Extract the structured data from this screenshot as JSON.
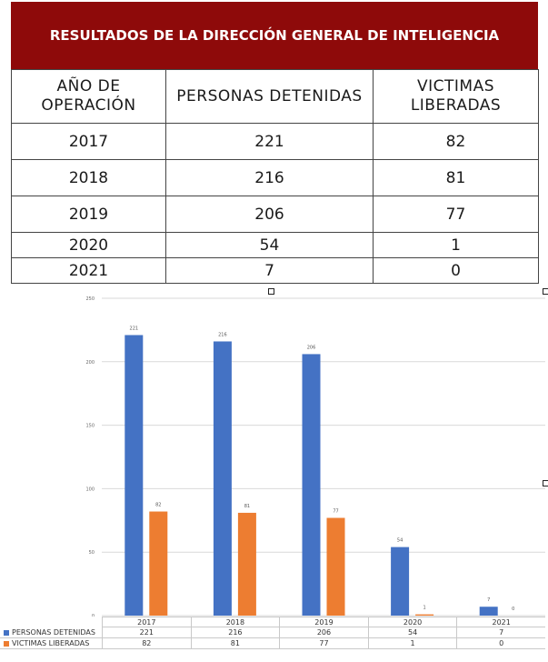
{
  "table": {
    "title": "RESULTADOS DE LA DIRECCIÓN GENERAL DE INTELIGENCIA",
    "headers": [
      "AÑO DE OPERACIÓN",
      "PERSONAS DETENIDAS",
      "VICTIMAS LIBERADAS"
    ],
    "rows": [
      [
        "2017",
        "221",
        "82"
      ],
      [
        "2018",
        "216",
        "81"
      ],
      [
        "2019",
        "206",
        "77"
      ],
      [
        "2020",
        "54",
        "1"
      ],
      [
        "2021",
        "7",
        "0"
      ]
    ]
  },
  "chart_data": {
    "type": "bar",
    "categories": [
      "2017",
      "2018",
      "2019",
      "2020",
      "2021"
    ],
    "series": [
      {
        "name": "PERSONAS DETENIDAS",
        "values": [
          221,
          216,
          206,
          54,
          7
        ],
        "color": "#4472c4"
      },
      {
        "name": "VICTIMAS LIBERADAS",
        "values": [
          82,
          81,
          77,
          1,
          0
        ],
        "color": "#ed7d31"
      }
    ],
    "yticks": [
      0,
      50,
      100,
      150,
      200,
      250
    ],
    "ylim": [
      0,
      250
    ],
    "grid": true,
    "legend": "data-table-below",
    "data_labels": true
  }
}
